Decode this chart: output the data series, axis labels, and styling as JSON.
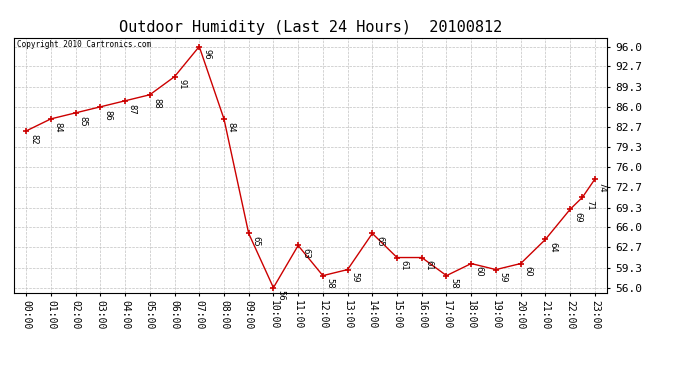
{
  "title": "Outdoor Humidity (Last 24 Hours)  20100812",
  "copyright_text": "Copyright 2010 Cartronics.com",
  "x_labels": [
    "00:00",
    "01:00",
    "02:00",
    "03:00",
    "04:00",
    "05:00",
    "06:00",
    "07:00",
    "08:00",
    "09:00",
    "10:00",
    "11:00",
    "12:00",
    "13:00",
    "14:00",
    "15:00",
    "16:00",
    "17:00",
    "18:00",
    "19:00",
    "20:00",
    "21:00",
    "22:00",
    "23:00"
  ],
  "y_values": [
    82,
    84,
    85,
    86,
    87,
    88,
    91,
    96,
    84,
    65,
    56,
    63,
    58,
    59,
    65,
    61,
    61,
    58,
    60,
    59,
    60,
    64,
    69,
    71,
    74
  ],
  "x_values": [
    0,
    1,
    2,
    3,
    4,
    5,
    6,
    7,
    8,
    9,
    10,
    11,
    12,
    13,
    14,
    15,
    16,
    17,
    18,
    19,
    20,
    21,
    22,
    22.5,
    23
  ],
  "y_ticks": [
    56.0,
    59.3,
    62.7,
    66.0,
    69.3,
    72.7,
    76.0,
    79.3,
    82.7,
    86.0,
    89.3,
    92.7,
    96.0
  ],
  "line_color": "#cc0000",
  "marker_color": "#cc0000",
  "background_color": "#ffffff",
  "grid_color": "#bbbbbb",
  "title_fontsize": 11,
  "tick_fontsize": 7,
  "ytick_fontsize": 8,
  "ylim": [
    55.2,
    97.5
  ],
  "xlim": [
    -0.5,
    23.5
  ]
}
